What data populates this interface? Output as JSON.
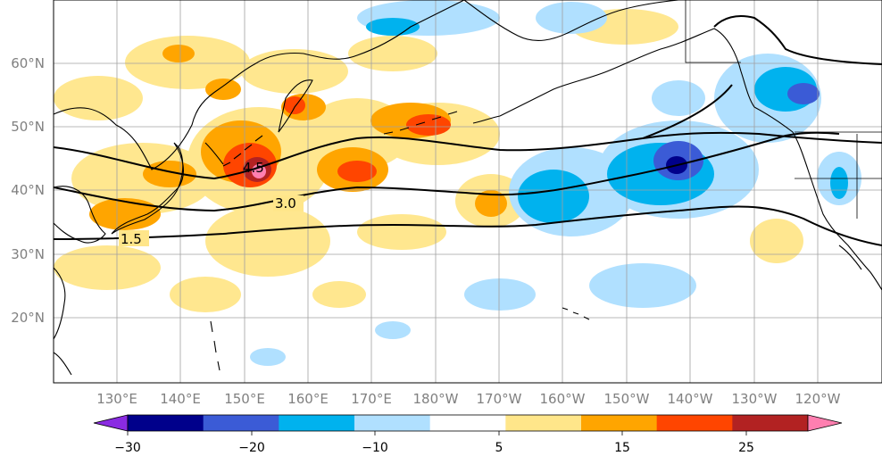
{
  "map": {
    "lat_labels": [
      "60°N",
      "50°N",
      "40°N",
      "30°N",
      "20°N"
    ],
    "lon_labels": [
      "130°E",
      "140°E",
      "150°E",
      "160°E",
      "170°E",
      "180°W",
      "170°W",
      "160°W",
      "150°W",
      "140°W",
      "130°W",
      "120°W"
    ],
    "contour_labels": [
      "4.5",
      "3.0",
      "1.5"
    ]
  },
  "colorbar": {
    "tick_labels": [
      "−30",
      "−20",
      "−10",
      "5",
      "15",
      "25"
    ],
    "colors": [
      "#8a2be2",
      "#00008b",
      "#3b5bd6",
      "#00b2ee",
      "#b0e0ff",
      "#ffffff",
      "#ffe68a",
      "#ffa500",
      "#ff4500",
      "#b22222",
      "#ff7fb0"
    ]
  },
  "palette": {
    "land_line": "#000000",
    "grid": "#a0a0a0"
  }
}
